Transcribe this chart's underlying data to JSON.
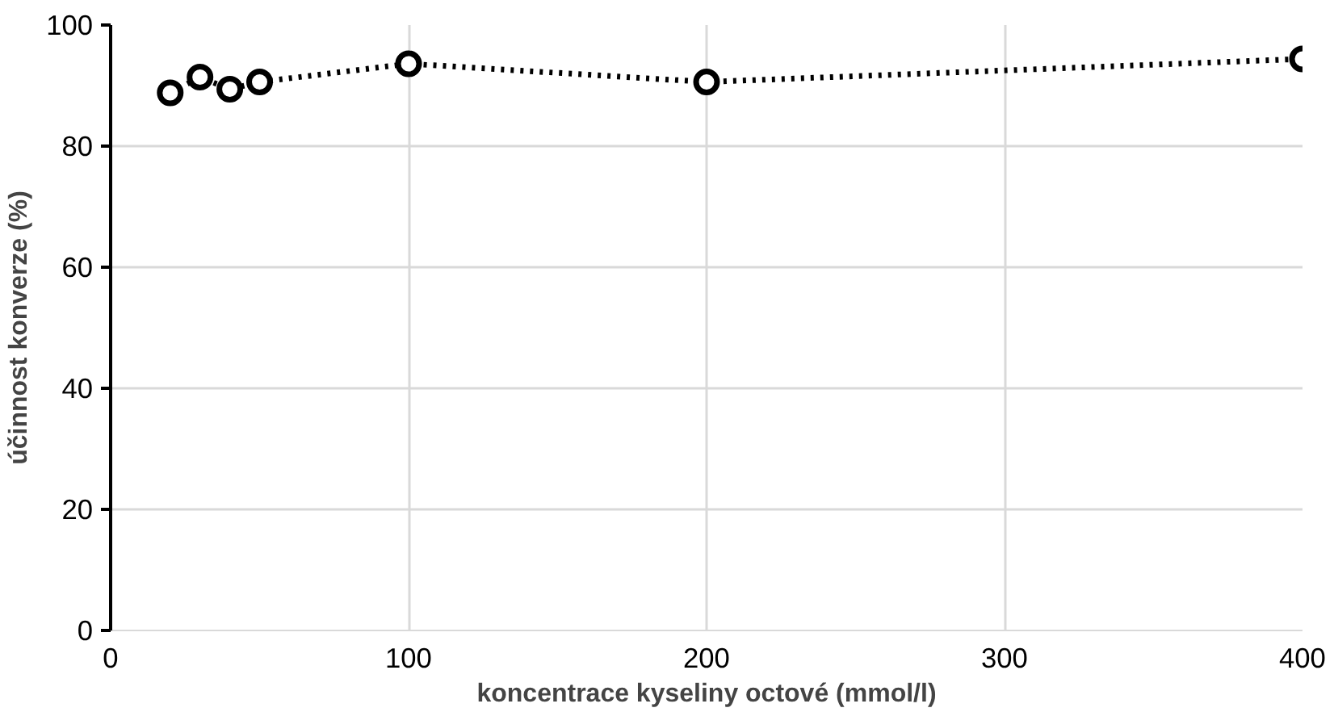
{
  "chart_data": {
    "type": "line",
    "xlabel": "koncentrace kyseliny octové (mmol/l)",
    "ylabel": "účinnost konverze (%)",
    "x": [
      20,
      30,
      40,
      50,
      100,
      200,
      400
    ],
    "series": [
      {
        "color": "#000000",
        "values": [
          88.8,
          91.4,
          89.4,
          90.6,
          93.6,
          90.6,
          94.4
        ]
      }
    ],
    "xlim": [
      0,
      400
    ],
    "xticks": [
      0,
      100,
      200,
      300,
      400
    ],
    "ylim": [
      0,
      100
    ],
    "yticks": [
      0,
      20,
      40,
      60,
      80,
      100
    ],
    "grid": true,
    "marker": "circle",
    "line_style": "dotted"
  }
}
